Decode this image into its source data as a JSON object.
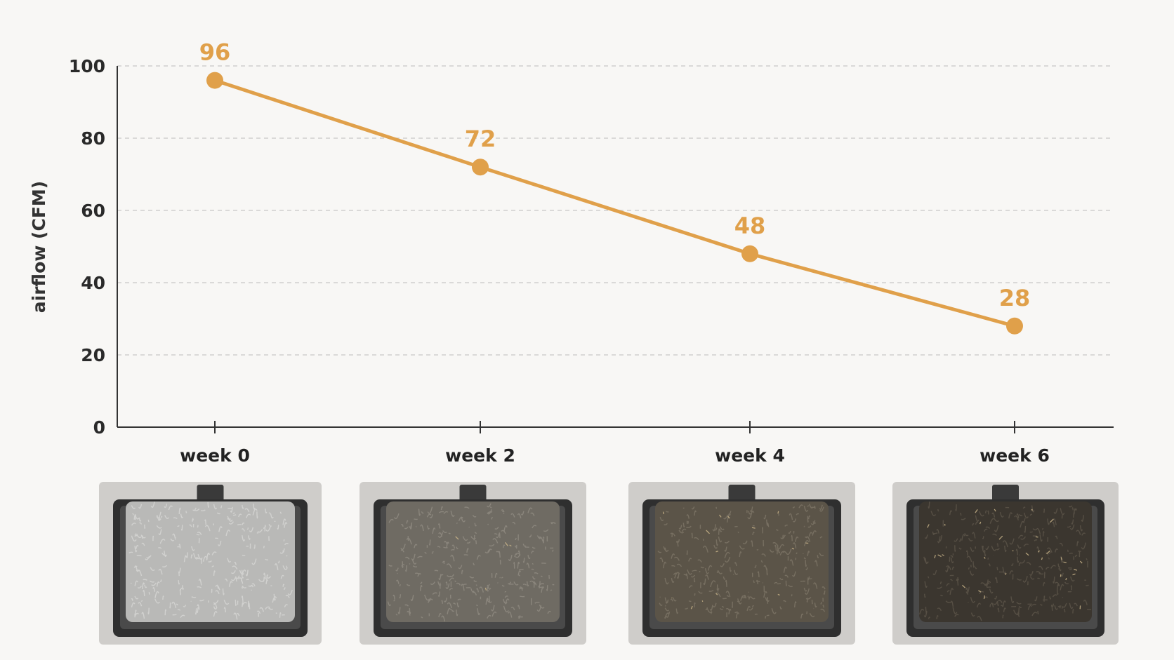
{
  "chart_data": {
    "type": "line",
    "categories": [
      "week 0",
      "week 2",
      "week 4",
      "week 6"
    ],
    "series": [
      {
        "values": [
          96,
          72,
          48,
          28
        ]
      }
    ],
    "data_labels": [
      "96",
      "72",
      "48",
      "28"
    ],
    "title": "",
    "xlabel": "",
    "ylabel": "airflow (CFM)",
    "ylim": [
      0,
      100
    ],
    "yticks": [
      "0",
      "20",
      "40",
      "60",
      "80",
      "100"
    ],
    "grid": "horizontal dashed",
    "legend": "none",
    "line_color": "#e0a04a",
    "text_color": "#2a2a2a"
  },
  "photos": [
    {
      "name": "filter-week-0",
      "shade": "#b9b9b7",
      "fiber": "#d4d4d2",
      "debris": 0
    },
    {
      "name": "filter-week-2",
      "shade": "#6f6b63",
      "fiber": "#8d887e",
      "debris": 4
    },
    {
      "name": "filter-week-4",
      "shade": "#5b5448",
      "fiber": "#7a7264",
      "debris": 14
    },
    {
      "name": "filter-week-6",
      "shade": "#3b362f",
      "fiber": "#5a5247",
      "debris": 30
    }
  ]
}
